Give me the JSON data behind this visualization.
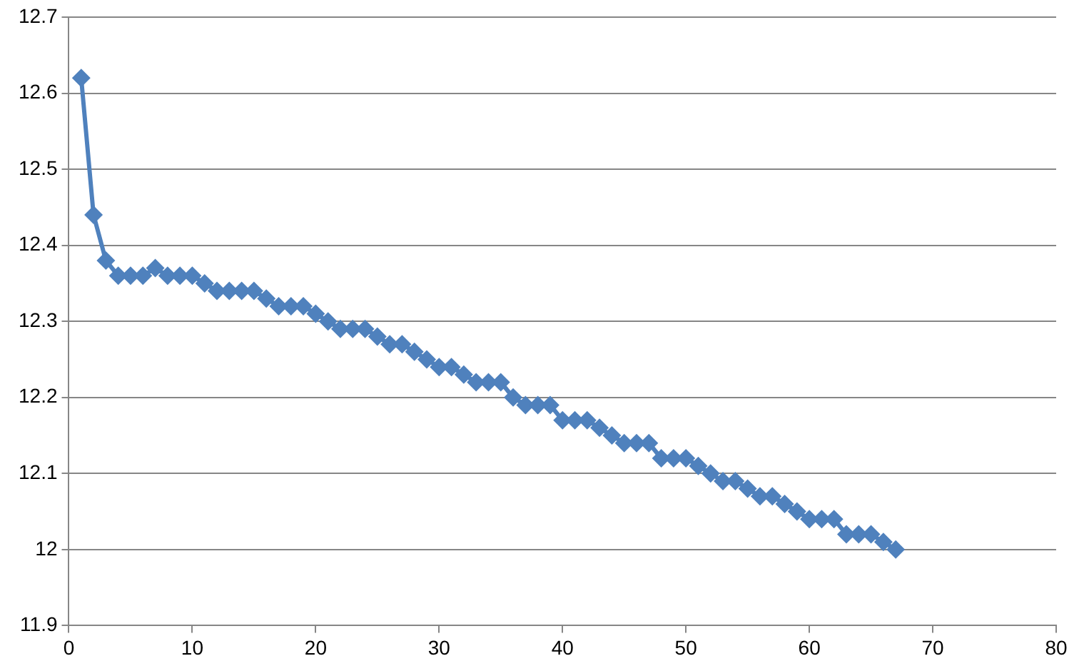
{
  "chart_data": {
    "type": "line",
    "x": [
      1,
      2,
      3,
      4,
      5,
      6,
      7,
      8,
      9,
      10,
      11,
      12,
      13,
      14,
      15,
      16,
      17,
      18,
      19,
      20,
      21,
      22,
      23,
      24,
      25,
      26,
      27,
      28,
      29,
      30,
      31,
      32,
      33,
      34,
      35,
      36,
      37,
      38,
      39,
      40,
      41,
      42,
      43,
      44,
      45,
      46,
      47,
      48,
      49,
      50,
      51,
      52,
      53,
      54,
      55,
      56,
      57,
      58,
      59,
      60,
      61,
      62,
      63,
      64,
      65,
      66,
      67
    ],
    "series": [
      {
        "color": "#4f81bd",
        "values": [
          12.62,
          12.44,
          12.38,
          12.36,
          12.36,
          12.36,
          12.37,
          12.36,
          12.36,
          12.36,
          12.35,
          12.34,
          12.34,
          12.34,
          12.34,
          12.33,
          12.32,
          12.32,
          12.32,
          12.31,
          12.3,
          12.29,
          12.29,
          12.29,
          12.28,
          12.27,
          12.27,
          12.26,
          12.25,
          12.24,
          12.24,
          12.23,
          12.22,
          12.22,
          12.22,
          12.2,
          12.19,
          12.19,
          12.19,
          12.17,
          12.17,
          12.17,
          12.16,
          12.15,
          12.14,
          12.14,
          12.14,
          12.12,
          12.12,
          12.12,
          12.11,
          12.1,
          12.09,
          12.09,
          12.08,
          12.07,
          12.07,
          12.06,
          12.05,
          12.04,
          12.04,
          12.04,
          12.02,
          12.02,
          12.02,
          12.01,
          12.0
        ]
      }
    ],
    "xlim": [
      0,
      80
    ],
    "xticks": [
      0,
      10,
      20,
      30,
      40,
      50,
      60,
      70,
      80
    ],
    "ylim": [
      11.9,
      12.7
    ],
    "yticks": [
      11.9,
      12,
      12.1,
      12.2,
      12.3,
      12.4,
      12.5,
      12.6,
      12.7
    ],
    "grid": "y",
    "legend": false,
    "marker": "diamond",
    "line_style": "solid"
  }
}
